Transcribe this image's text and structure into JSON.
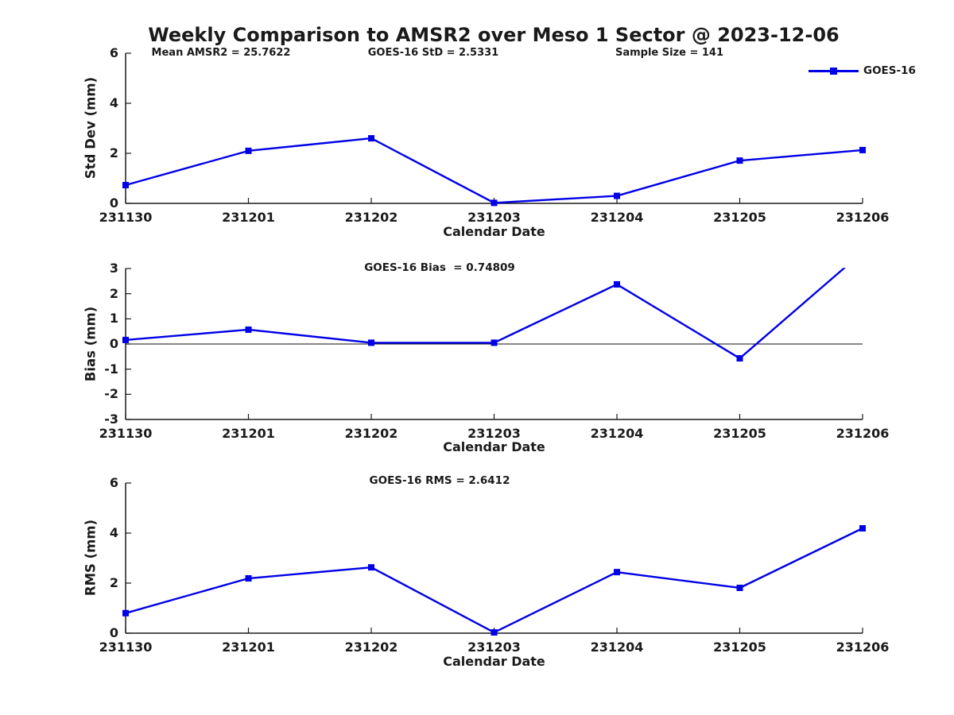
{
  "figure": {
    "title": "Weekly Comparison to AMSR2 over Meso 1 Sector @ 2023-12-06",
    "background_color": "#ffffff",
    "line_color": "#0000e8",
    "axis_color": "#1a1a1a",
    "text_color": "#1a1a1a"
  },
  "legend": {
    "label": "GOES-16",
    "position": "top-right",
    "marker": "filled-square",
    "color": "#0000e8"
  },
  "header_annotations": [
    {
      "text": "Mean AMSR2 = 25.7622"
    },
    {
      "text": "GOES-16 StD = 2.5331"
    },
    {
      "text": "Sample Size = 141"
    }
  ],
  "chart_data": [
    {
      "type": "line",
      "title": "",
      "xlabel": "Calendar Date",
      "ylabel": "Std Dev (mm)",
      "categories": [
        "231130",
        "231201",
        "231202",
        "231203",
        "231204",
        "231205",
        "231206"
      ],
      "series": [
        {
          "name": "GOES-16",
          "color": "#0000e8",
          "marker": "square",
          "values": [
            0.73,
            2.1,
            2.6,
            0.02,
            0.3,
            1.71,
            2.13
          ]
        }
      ],
      "ylim": [
        0,
        6
      ],
      "yticks": [
        0,
        2,
        4,
        6
      ],
      "grid": false,
      "zero_line": false,
      "annotations": [
        "Mean AMSR2 = 25.7622",
        "GOES-16 StD = 2.5331",
        "Sample Size = 141"
      ],
      "legend_position": "above-plot-right"
    },
    {
      "type": "line",
      "title": "GOES-16 Bias  = 0.74809",
      "xlabel": "Calendar Date",
      "ylabel": "Bias (mm)",
      "categories": [
        "231130",
        "231201",
        "231202",
        "231203",
        "231204",
        "231205",
        "231206"
      ],
      "series": [
        {
          "name": "GOES-16",
          "color": "#0000e8",
          "marker": "square",
          "values": [
            0.16,
            0.57,
            0.05,
            0.05,
            2.37,
            -0.57,
            3.65
          ]
        }
      ],
      "ylim": [
        -3,
        3
      ],
      "yticks": [
        -3,
        -2,
        -1,
        0,
        1,
        2,
        3
      ],
      "grid": false,
      "zero_line": true,
      "clip_note": "last point rises above ylim and the line is clipped at y=3"
    },
    {
      "type": "line",
      "title": "GOES-16 RMS = 2.6412",
      "xlabel": "Calendar Date",
      "ylabel": "RMS (mm)",
      "categories": [
        "231130",
        "231201",
        "231202",
        "231203",
        "231204",
        "231205",
        "231206"
      ],
      "series": [
        {
          "name": "GOES-16",
          "color": "#0000e8",
          "marker": "square",
          "values": [
            0.8,
            2.19,
            2.63,
            0.03,
            2.44,
            1.81,
            4.19
          ]
        }
      ],
      "ylim": [
        0,
        6
      ],
      "yticks": [
        0,
        2,
        4,
        6
      ],
      "grid": false,
      "zero_line": false
    }
  ]
}
